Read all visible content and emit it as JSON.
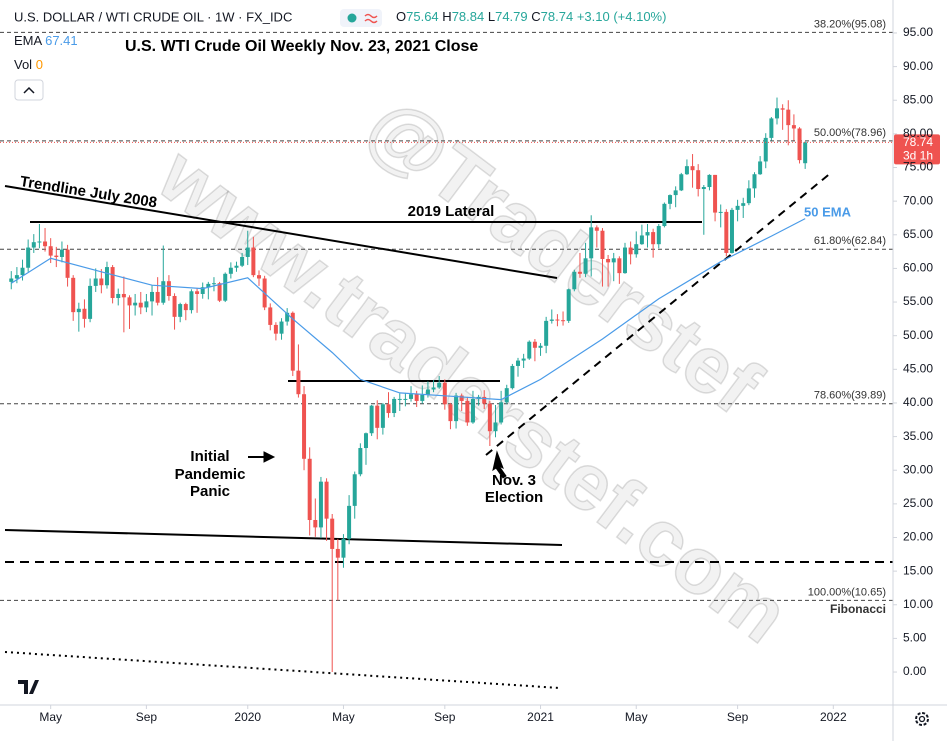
{
  "chart_data": {
    "type": "candlestick",
    "symbol": "U.S. DOLLAR / WTI CRUDE OIL · 1W · FX_IDC",
    "title": "U.S. WTI Crude Oil Weekly Nov. 23, 2021 Close",
    "ohlc_labels": [
      "O",
      "H",
      "L",
      "C"
    ],
    "change": "+3.10 (+4.10%)",
    "volume_label": "Vol",
    "volume_value": 0,
    "countdown": "3d 1h",
    "watermark": [
      "www.traderstef.com",
      "@Traderstef"
    ],
    "annotations": {
      "trendline": "Trendline July 2008",
      "lateral": "2019 Lateral",
      "pandemic": [
        "Initial",
        "Pandemic",
        "Panic"
      ],
      "election": [
        "Nov. 3",
        "Election"
      ],
      "ema": "50 EMA"
    },
    "xlim": [
      -2,
      156.6
    ],
    "xticks": [
      {
        "value": 7,
        "label": "May"
      },
      {
        "value": 24,
        "label": "Sep"
      },
      {
        "value": 42,
        "label": "2020"
      },
      {
        "value": 59,
        "label": "May"
      },
      {
        "value": 77,
        "label": "Sep"
      },
      {
        "value": 94,
        "label": "2021"
      },
      {
        "value": 111,
        "label": "May"
      },
      {
        "value": 129,
        "label": "Sep"
      },
      {
        "value": 146,
        "label": "2022"
      }
    ],
    "ylim": [
      -4.9,
      99.9
    ],
    "yticks": [
      {
        "value": 0,
        "label": "0.00"
      },
      {
        "value": 5,
        "label": "5.00"
      },
      {
        "value": 10,
        "label": "10.00"
      },
      {
        "value": 15,
        "label": "15.00"
      },
      {
        "value": 20,
        "label": "20.00"
      },
      {
        "value": 25,
        "label": "25.00"
      },
      {
        "value": 30,
        "label": "30.00"
      },
      {
        "value": 35,
        "label": "35.00"
      },
      {
        "value": 40,
        "label": "40.00"
      },
      {
        "value": 45,
        "label": "45.00"
      },
      {
        "value": 50,
        "label": "50.00"
      },
      {
        "value": 55,
        "label": "55.00"
      },
      {
        "value": 60,
        "label": "60.00"
      },
      {
        "value": 65,
        "label": "65.00"
      },
      {
        "value": 70,
        "label": "70.00"
      },
      {
        "value": 75,
        "label": "75.00"
      },
      {
        "value": 80,
        "label": "80.00"
      },
      {
        "value": 85,
        "label": "85.00"
      },
      {
        "value": 90,
        "label": "90.00"
      },
      {
        "value": 95,
        "label": "95.00"
      }
    ],
    "grid": false,
    "candles": {
      "up_color": "#26a69a",
      "down_color": "#ef5350",
      "open": [
        58.0,
        58.5,
        59.0,
        60.1,
        63.1,
        63.9,
        64.0,
        63.3,
        61.9,
        61.7,
        62.8,
        58.6,
        53.5,
        54.0,
        52.5,
        57.4,
        58.5,
        57.5,
        60.2,
        55.6,
        56.2,
        55.7,
        54.5,
        54.9,
        54.2,
        55.1,
        56.5,
        54.9,
        58.1,
        55.9,
        52.8,
        54.7,
        53.8,
        56.6,
        56.2,
        57.2,
        57.7,
        57.8,
        55.2,
        59.2,
        60.1,
        60.4,
        61.7,
        63.1,
        59.0,
        58.5,
        54.2,
        51.6,
        50.3,
        52.1,
        53.4,
        44.8,
        41.3,
        31.7,
        22.6,
        21.5,
        28.3,
        22.8,
        18.3,
        17.0,
        19.8,
        24.7,
        29.4,
        33.3,
        35.5,
        39.6,
        36.3,
        39.8,
        38.5,
        40.6,
        40.6,
        40.6,
        41.3,
        40.3,
        41.2,
        42.0,
        42.3,
        43.0,
        39.8,
        37.3,
        41.1,
        40.3,
        37.1,
        40.6,
        40.9,
        39.9,
        35.8,
        37.1,
        40.1,
        42.2,
        45.5,
        46.3,
        46.6,
        49.1,
        48.2,
        48.5,
        52.2,
        52.4,
        52.3,
        52.2,
        56.9,
        59.5,
        59.2,
        61.5,
        66.1,
        65.6,
        61.4,
        60.9,
        61.5,
        59.3,
        63.1,
        62.1,
        63.6,
        64.9,
        65.4,
        63.6,
        66.3,
        69.6,
        70.9,
        71.6,
        74.0,
        75.2,
        74.6,
        71.8,
        72.1,
        73.9,
        68.3,
        68.4,
        62.3,
        68.7,
        69.3,
        69.7,
        71.9,
        74.0,
        75.9,
        79.4,
        82.3,
        83.8,
        83.6,
        81.3,
        80.8,
        75.64
      ],
      "high": [
        59.6,
        60.2,
        61.3,
        64.3,
        65.1,
        66.6,
        66.0,
        64.5,
        63.2,
        64.0,
        63.5,
        59.0,
        54.9,
        55.4,
        58.5,
        60.0,
        59.9,
        61.0,
        60.5,
        57.0,
        58.8,
        56.0,
        56.2,
        56.5,
        56.2,
        57.5,
        58.7,
        63.4,
        59.0,
        56.3,
        54.9,
        54.9,
        56.9,
        57.0,
        57.9,
        58.0,
        58.7,
        58.0,
        59.4,
        60.9,
        61.0,
        62.3,
        65.6,
        64.7,
        59.7,
        58.9,
        54.8,
        52.0,
        52.6,
        54.1,
        53.6,
        48.7,
        42.5,
        33.4,
        25.8,
        29.0,
        28.8,
        23.5,
        19.8,
        20.5,
        26.3,
        29.8,
        34.0,
        35.6,
        39.7,
        40.4,
        40.0,
        41.6,
        40.9,
        41.4,
        41.5,
        42.5,
        41.8,
        42.6,
        43.2,
        43.4,
        44.0,
        43.5,
        40.0,
        41.5,
        41.4,
        40.9,
        41.8,
        41.2,
        41.9,
        40.3,
        39.7,
        41.8,
        42.7,
        45.8,
        46.7,
        47.3,
        49.3,
        49.5,
        48.9,
        52.8,
        53.9,
        53.2,
        53.6,
        57.0,
        59.8,
        62.3,
        63.8,
        67.9,
        66.4,
        66.0,
        62.0,
        62.3,
        61.8,
        63.8,
        64.0,
        65.5,
        66.5,
        66.6,
        65.9,
        66.6,
        69.8,
        71.0,
        72.2,
        74.2,
        76.2,
        77.0,
        75.5,
        72.4,
        74.0,
        73.9,
        69.5,
        68.8,
        69.0,
        70.2,
        70.5,
        73.1,
        74.3,
        76.7,
        80.1,
        82.5,
        85.4,
        84.4,
        85.0,
        82.9,
        81.0,
        78.84
      ],
      "low": [
        56.9,
        57.8,
        58.2,
        59.5,
        62.3,
        63.0,
        62.5,
        60.8,
        60.2,
        60.9,
        57.3,
        52.2,
        50.6,
        51.2,
        52.0,
        56.5,
        56.3,
        57.0,
        54.8,
        54.5,
        50.5,
        51.0,
        53.0,
        53.2,
        53.5,
        53.0,
        54.5,
        54.6,
        55.2,
        50.9,
        52.0,
        52.3,
        53.3,
        53.4,
        55.5,
        55.4,
        56.6,
        55.0,
        55.0,
        58.5,
        59.5,
        60.2,
        60.5,
        58.7,
        57.4,
        53.8,
        50.8,
        49.3,
        49.4,
        51.5,
        44.0,
        40.8,
        30.0,
        20.3,
        20.1,
        19.9,
        19.5,
        0.0,
        10.65,
        15.5,
        19.0,
        22.8,
        29.1,
        30.8,
        35.1,
        34.6,
        35.3,
        37.8,
        37.9,
        38.8,
        39.5,
        40.2,
        39.4,
        39.9,
        40.8,
        41.6,
        42.1,
        39.0,
        36.1,
        36.2,
        38.8,
        36.6,
        36.9,
        39.6,
        39.1,
        33.6,
        34.9,
        36.8,
        39.8,
        42.0,
        43.9,
        45.2,
        46.4,
        46.2,
        47.0,
        47.4,
        51.8,
        51.4,
        51.5,
        51.9,
        56.6,
        58.6,
        58.7,
        58.8,
        63.1,
        57.3,
        57.3,
        58.1,
        57.7,
        59.2,
        60.6,
        61.6,
        63.5,
        63.1,
        61.6,
        63.0,
        66.1,
        68.8,
        69.1,
        71.5,
        73.9,
        72.0,
        70.7,
        65.0,
        71.6,
        67.0,
        66.1,
        61.8,
        62.2,
        67.0,
        67.5,
        69.4,
        70.5,
        73.9,
        74.9,
        79.0,
        81.4,
        80.6,
        78.3,
        79.0,
        75.6,
        74.79
      ],
      "close": [
        58.5,
        59.0,
        60.1,
        63.1,
        63.9,
        64.0,
        63.3,
        61.9,
        61.7,
        62.8,
        58.6,
        53.5,
        54.0,
        52.5,
        57.4,
        58.5,
        57.5,
        60.2,
        55.6,
        56.2,
        55.7,
        54.5,
        54.9,
        54.2,
        55.1,
        56.5,
        54.9,
        58.1,
        55.9,
        52.8,
        54.7,
        53.8,
        56.6,
        56.2,
        57.2,
        57.7,
        57.8,
        55.2,
        59.2,
        60.1,
        60.4,
        61.7,
        63.1,
        59.0,
        58.5,
        54.2,
        51.6,
        50.3,
        52.1,
        53.4,
        44.8,
        41.3,
        31.7,
        22.6,
        21.5,
        28.3,
        22.8,
        18.3,
        17.0,
        19.8,
        24.7,
        29.4,
        33.3,
        35.5,
        39.6,
        36.3,
        39.8,
        38.5,
        40.6,
        40.6,
        40.6,
        41.3,
        40.3,
        41.2,
        42.0,
        42.3,
        43.0,
        39.8,
        37.3,
        41.1,
        40.3,
        37.1,
        40.6,
        40.9,
        39.9,
        35.8,
        37.1,
        40.1,
        42.2,
        45.5,
        46.3,
        46.6,
        49.1,
        48.2,
        48.5,
        52.2,
        52.4,
        52.3,
        52.2,
        56.9,
        59.5,
        59.2,
        61.5,
        66.1,
        65.6,
        61.4,
        60.9,
        61.5,
        59.3,
        63.1,
        62.1,
        63.6,
        64.9,
        65.4,
        63.6,
        66.3,
        69.6,
        70.9,
        71.6,
        74.0,
        75.2,
        74.6,
        71.8,
        72.1,
        73.9,
        68.3,
        68.4,
        62.3,
        68.7,
        69.3,
        69.7,
        71.9,
        74.0,
        75.9,
        79.4,
        82.3,
        83.8,
        83.6,
        81.3,
        80.8,
        76.1,
        78.74
      ]
    },
    "ema": {
      "name": "EMA",
      "color": "#4a9be8",
      "x": [
        0,
        7,
        16,
        25,
        34,
        42,
        50,
        57,
        62,
        69,
        78,
        87,
        94,
        105,
        115,
        126,
        135,
        141
      ],
      "values": [
        57.8,
        61.5,
        59.5,
        57.5,
        57.0,
        58.6,
        52.5,
        47.5,
        43.5,
        41.5,
        41.0,
        40.5,
        43.5,
        49.5,
        55.5,
        61.0,
        64.8,
        67.41
      ]
    },
    "fibonacci": {
      "name": "Fibonacci",
      "levels": [
        {
          "value": 95.08,
          "label": "38.20%(95.08)"
        },
        {
          "value": 78.96,
          "label": "50.00%(78.96)"
        },
        {
          "value": 62.84,
          "label": "61.80%(62.84)"
        },
        {
          "value": 39.89,
          "label": "78.60%(39.89)"
        },
        {
          "value": 10.65,
          "label": "100.00%(10.65)"
        }
      ]
    }
  }
}
